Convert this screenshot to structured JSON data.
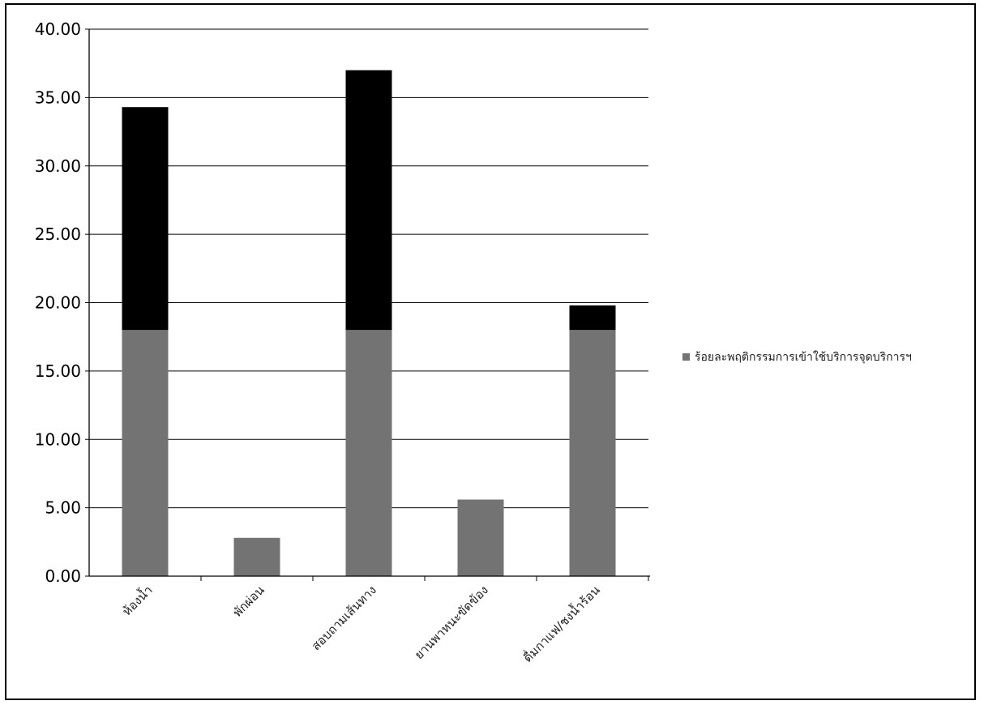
{
  "chart_data": {
    "type": "bar",
    "stacked": true,
    "title": "",
    "xlabel": "",
    "ylabel": "",
    "categories": [
      "ห้องน้ำ",
      "พักผ่อน",
      "สอบถามเส้นทาง",
      "ยานพาหนะขัดข้อง",
      "ดื่มกาแฟ/ชงน้ำร้อน"
    ],
    "series": [
      {
        "name": "ร้อยละพฤติกรรมการเข้าใช้บริการจุดบริการฯ",
        "color": "#737373",
        "values": [
          18.0,
          2.8,
          18.0,
          5.6,
          18.0
        ]
      },
      {
        "name": "",
        "color": "#000000",
        "values": [
          16.3,
          0.0,
          19.0,
          0.0,
          1.8
        ]
      }
    ],
    "ylim": [
      0,
      40
    ],
    "yticks": [
      "0.00",
      "5.00",
      "10.00",
      "15.00",
      "20.00",
      "25.00",
      "30.00",
      "35.00",
      "40.00"
    ],
    "grid": true,
    "legend_position": "right"
  }
}
